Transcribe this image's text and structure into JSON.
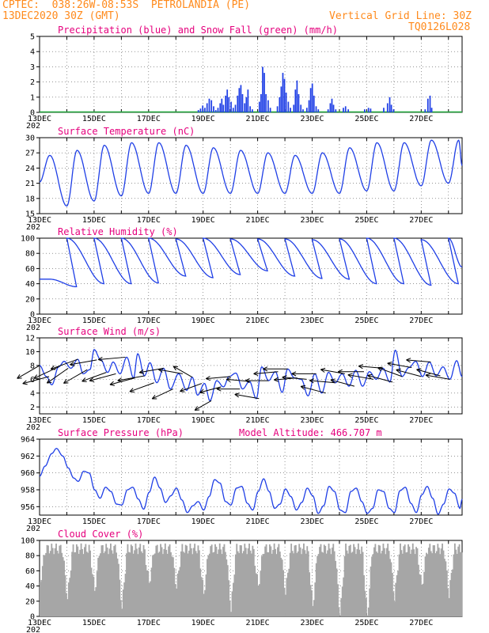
{
  "header": {
    "line1": "CPTEC:  038:26W-08:53S  PETROLANDIA (PE)",
    "line2": "13DEC2020 30Z (GMT)",
    "grid_note": "Vertical Grid Line: 30Z",
    "code": "TQ0126L028"
  },
  "colors": {
    "header": "#ff8a1c",
    "title": "#e5007d",
    "line": "#1f3fe6",
    "snow": "#1fa83a",
    "cloud": "#a6a6a6",
    "arrow": "#000000"
  },
  "axis": {
    "day_count": 15.5,
    "date_labels": [
      "13DEC",
      "15DEC",
      "17DEC",
      "19DEC",
      "21DEC",
      "23DEC",
      "25DEC",
      "27DEC"
    ],
    "date_days": [
      0,
      2,
      4,
      6,
      8,
      10,
      12,
      14
    ],
    "year_fragment": "202"
  },
  "chart_data": [
    {
      "id": "precip",
      "type": "bar",
      "title": "Precipitation (blue) and Snow Fall (green) (mm/h)",
      "ylim": [
        0,
        5
      ],
      "yticks": [
        0,
        1,
        2,
        3,
        4,
        5
      ],
      "bars": [
        [
          5.8,
          0.15
        ],
        [
          5.88,
          0.25
        ],
        [
          5.96,
          0.45
        ],
        [
          6.04,
          0.3
        ],
        [
          6.12,
          0.6
        ],
        [
          6.2,
          0.9
        ],
        [
          6.28,
          0.8
        ],
        [
          6.36,
          0.4
        ],
        [
          6.44,
          0.15
        ],
        [
          6.52,
          0.3
        ],
        [
          6.6,
          0.6
        ],
        [
          6.66,
          0.9
        ],
        [
          6.72,
          0.5
        ],
        [
          6.8,
          1.1
        ],
        [
          6.86,
          1.5
        ],
        [
          6.92,
          1.0
        ],
        [
          7.0,
          0.7
        ],
        [
          7.08,
          0.3
        ],
        [
          7.16,
          0.5
        ],
        [
          7.24,
          1.1
        ],
        [
          7.3,
          1.6
        ],
        [
          7.36,
          1.8
        ],
        [
          7.42,
          1.2
        ],
        [
          7.5,
          0.6
        ],
        [
          7.56,
          1.0
        ],
        [
          7.62,
          1.5
        ],
        [
          7.7,
          0.4
        ],
        [
          7.78,
          0.2
        ],
        [
          8.04,
          0.7
        ],
        [
          8.1,
          1.2
        ],
        [
          8.16,
          3.0
        ],
        [
          8.22,
          2.6
        ],
        [
          8.28,
          1.2
        ],
        [
          8.36,
          0.8
        ],
        [
          8.44,
          0.3
        ],
        [
          8.7,
          0.4
        ],
        [
          8.78,
          1.0
        ],
        [
          8.84,
          1.7
        ],
        [
          8.9,
          2.6
        ],
        [
          8.96,
          2.2
        ],
        [
          9.02,
          1.3
        ],
        [
          9.1,
          0.7
        ],
        [
          9.18,
          0.3
        ],
        [
          9.3,
          0.5
        ],
        [
          9.36,
          1.5
        ],
        [
          9.42,
          2.1
        ],
        [
          9.48,
          1.2
        ],
        [
          9.56,
          0.5
        ],
        [
          9.64,
          0.2
        ],
        [
          9.78,
          0.3
        ],
        [
          9.86,
          0.8
        ],
        [
          9.92,
          1.6
        ],
        [
          9.98,
          1.9
        ],
        [
          10.04,
          1.1
        ],
        [
          10.12,
          0.4
        ],
        [
          10.2,
          0.2
        ],
        [
          10.56,
          0.2
        ],
        [
          10.64,
          0.6
        ],
        [
          10.7,
          0.9
        ],
        [
          10.76,
          0.5
        ],
        [
          10.84,
          0.2
        ],
        [
          11.12,
          0.3
        ],
        [
          11.2,
          0.4
        ],
        [
          11.3,
          0.2
        ],
        [
          11.9,
          0.2
        ],
        [
          12.04,
          0.3
        ],
        [
          12.12,
          0.25
        ],
        [
          12.6,
          0.3
        ],
        [
          12.74,
          0.6
        ],
        [
          12.82,
          1.0
        ],
        [
          12.88,
          0.5
        ],
        [
          12.96,
          0.2
        ],
        [
          14.12,
          0.2
        ],
        [
          14.22,
          0.9
        ],
        [
          14.3,
          1.1
        ],
        [
          14.36,
          0.3
        ]
      ],
      "snow": [
        [
          0,
          6
        ],
        [
          6,
          15.5
        ]
      ]
    },
    {
      "id": "temp",
      "type": "line",
      "title": "Surface Temperature (nC)",
      "ylim": [
        15,
        30
      ],
      "yticks": [
        15,
        18,
        21,
        24,
        27,
        30
      ],
      "daily_min": [
        16,
        16.5,
        17.5,
        18.5,
        19,
        19,
        19,
        19,
        19,
        19,
        19,
        19,
        19.5,
        19.5,
        20.5,
        21
      ],
      "daily_max": [
        26.5,
        27.5,
        28.5,
        29,
        29,
        28.5,
        28,
        27.5,
        27,
        26.5,
        27,
        28,
        29,
        29,
        29.5,
        29.5
      ],
      "min_hour": 9,
      "max_hour": 18,
      "end_value": 24.5
    },
    {
      "id": "rh",
      "type": "line",
      "title": "Relative Humidity (%)",
      "ylim": [
        0,
        100
      ],
      "yticks": [
        0,
        20,
        40,
        60,
        80,
        100
      ],
      "daily_min": [
        46,
        36,
        40,
        40,
        41,
        50,
        48,
        52,
        57,
        50,
        47,
        46,
        40,
        40,
        38,
        40
      ],
      "daily_max": [
        100,
        100,
        100,
        100,
        100,
        99,
        100,
        99,
        99,
        99,
        98,
        99,
        100,
        100,
        98,
        100
      ],
      "end_value": 62
    },
    {
      "id": "wind",
      "type": "line",
      "title": "Surface Wind (m/s)",
      "ylim": [
        1,
        12
      ],
      "yticks": [
        2,
        4,
        6,
        8,
        10,
        12
      ],
      "values": [
        [
          0.0,
          8.0
        ],
        [
          0.25,
          6.4
        ],
        [
          0.45,
          5.2
        ],
        [
          0.7,
          7.8
        ],
        [
          0.9,
          8.6
        ],
        [
          1.15,
          7.6
        ],
        [
          1.4,
          8.9
        ],
        [
          1.6,
          6.8
        ],
        [
          1.85,
          7.4
        ],
        [
          2.0,
          10.3
        ],
        [
          2.25,
          8.8
        ],
        [
          2.5,
          7.0
        ],
        [
          2.7,
          8.5
        ],
        [
          2.95,
          6.8
        ],
        [
          3.2,
          9.2
        ],
        [
          3.45,
          6.2
        ],
        [
          3.6,
          9.7
        ],
        [
          3.85,
          6.5
        ],
        [
          4.05,
          8.4
        ],
        [
          4.3,
          5.5
        ],
        [
          4.55,
          7.6
        ],
        [
          4.8,
          4.6
        ],
        [
          5.1,
          6.8
        ],
        [
          5.4,
          4.4
        ],
        [
          5.6,
          6.3
        ],
        [
          5.8,
          3.7
        ],
        [
          6.05,
          5.4
        ],
        [
          6.25,
          2.9
        ],
        [
          6.5,
          5.8
        ],
        [
          6.75,
          4.9
        ],
        [
          6.95,
          6.4
        ],
        [
          7.2,
          6.9
        ],
        [
          7.45,
          4.6
        ],
        [
          7.7,
          5.7
        ],
        [
          7.95,
          3.2
        ],
        [
          8.15,
          7.8
        ],
        [
          8.4,
          5.8
        ],
        [
          8.65,
          7.1
        ],
        [
          8.9,
          4.1
        ],
        [
          9.1,
          7.5
        ],
        [
          9.35,
          6.2
        ],
        [
          9.6,
          6.0
        ],
        [
          9.85,
          3.6
        ],
        [
          10.1,
          6.8
        ],
        [
          10.35,
          4.0
        ],
        [
          10.6,
          7.0
        ],
        [
          10.85,
          5.5
        ],
        [
          11.1,
          6.8
        ],
        [
          11.35,
          5.0
        ],
        [
          11.6,
          7.3
        ],
        [
          11.85,
          5.0
        ],
        [
          12.1,
          7.1
        ],
        [
          12.35,
          6.0
        ],
        [
          12.6,
          7.6
        ],
        [
          12.85,
          5.6
        ],
        [
          13.05,
          10.2
        ],
        [
          13.3,
          6.4
        ],
        [
          13.55,
          7.7
        ],
        [
          13.8,
          8.6
        ],
        [
          14.05,
          6.4
        ],
        [
          14.3,
          8.5
        ],
        [
          14.55,
          6.5
        ],
        [
          14.8,
          7.8
        ],
        [
          15.05,
          6.0
        ],
        [
          15.3,
          8.7
        ],
        [
          15.5,
          6.4
        ]
      ],
      "arrows": [
        [
          0.0,
          8.0,
          240,
          0.95
        ],
        [
          0.35,
          6.4,
          255,
          1.0
        ],
        [
          0.7,
          7.8,
          245,
          1.0
        ],
        [
          1.05,
          7.6,
          235,
          0.95
        ],
        [
          1.4,
          8.9,
          250,
          1.05
        ],
        [
          1.75,
          7.4,
          240,
          1.0
        ],
        [
          2.1,
          8.8,
          260,
          1.0
        ],
        [
          2.45,
          7.0,
          250,
          0.95
        ],
        [
          2.8,
          6.8,
          255,
          1.0
        ],
        [
          3.15,
          9.2,
          265,
          1.0
        ],
        [
          3.5,
          6.2,
          255,
          0.95
        ],
        [
          3.85,
          6.5,
          260,
          1.0
        ],
        [
          4.2,
          5.5,
          250,
          0.95
        ],
        [
          4.55,
          7.6,
          260,
          0.9
        ],
        [
          4.9,
          4.6,
          245,
          0.85
        ],
        [
          5.25,
          6.8,
          280,
          0.9
        ],
        [
          5.6,
          6.3,
          300,
          0.8
        ],
        [
          5.95,
          5.4,
          250,
          0.85
        ],
        [
          6.3,
          2.9,
          240,
          0.7
        ],
        [
          6.65,
          4.9,
          255,
          0.8
        ],
        [
          7.0,
          6.4,
          265,
          0.9
        ],
        [
          7.35,
          4.6,
          270,
          0.85
        ],
        [
          7.7,
          5.7,
          275,
          0.85
        ],
        [
          8.05,
          3.2,
          280,
          0.9
        ],
        [
          8.4,
          5.8,
          270,
          0.85
        ],
        [
          8.75,
          7.1,
          265,
          0.9
        ],
        [
          9.1,
          7.5,
          270,
          0.9
        ],
        [
          9.45,
          6.2,
          265,
          0.85
        ],
        [
          9.8,
          6.0,
          275,
          0.9
        ],
        [
          10.15,
          6.8,
          270,
          0.9
        ],
        [
          10.5,
          4.0,
          285,
          0.95
        ],
        [
          10.85,
          5.5,
          275,
          0.95
        ],
        [
          11.2,
          6.8,
          280,
          0.9
        ],
        [
          11.55,
          5.0,
          285,
          0.9
        ],
        [
          11.9,
          7.1,
          270,
          0.95
        ],
        [
          12.25,
          6.0,
          280,
          0.95
        ],
        [
          12.6,
          7.6,
          275,
          0.9
        ],
        [
          12.95,
          5.6,
          285,
          0.95
        ],
        [
          13.3,
          6.4,
          290,
          0.95
        ],
        [
          13.65,
          7.7,
          280,
          0.9
        ],
        [
          14.0,
          6.4,
          285,
          0.95
        ],
        [
          14.35,
          8.5,
          275,
          0.9
        ],
        [
          14.7,
          6.5,
          285,
          0.9
        ],
        [
          15.05,
          6.0,
          280,
          0.9
        ]
      ]
    },
    {
      "id": "pres",
      "type": "line",
      "title": "Surface Pressure (hPa)",
      "subtitle": "Model Altitude: 466.707 m",
      "ylim": [
        955,
        964
      ],
      "yticks": [
        956,
        958,
        960,
        962,
        964
      ],
      "values": [
        [
          0.0,
          959.6
        ],
        [
          0.2,
          960.8
        ],
        [
          0.45,
          962.3
        ],
        [
          0.62,
          962.9
        ],
        [
          0.85,
          962.0
        ],
        [
          1.05,
          960.6
        ],
        [
          1.25,
          959.4
        ],
        [
          1.42,
          959.0
        ],
        [
          1.62,
          960.2
        ],
        [
          1.82,
          960.0
        ],
        [
          2.02,
          958.0
        ],
        [
          2.22,
          957.0
        ],
        [
          2.42,
          958.3
        ],
        [
          2.62,
          957.8
        ],
        [
          2.82,
          956.3
        ],
        [
          3.02,
          956.2
        ],
        [
          3.22,
          958.0
        ],
        [
          3.42,
          958.3
        ],
        [
          3.62,
          956.9
        ],
        [
          3.82,
          955.7
        ],
        [
          4.02,
          957.7
        ],
        [
          4.22,
          959.5
        ],
        [
          4.42,
          958.2
        ],
        [
          4.62,
          956.5
        ],
        [
          4.82,
          957.3
        ],
        [
          5.02,
          958.2
        ],
        [
          5.22,
          956.8
        ],
        [
          5.42,
          955.3
        ],
        [
          5.62,
          956.1
        ],
        [
          5.82,
          956.6
        ],
        [
          6.02,
          955.6
        ],
        [
          6.22,
          957.2
        ],
        [
          6.42,
          959.2
        ],
        [
          6.62,
          958.8
        ],
        [
          6.82,
          956.6
        ],
        [
          7.02,
          956.2
        ],
        [
          7.22,
          958.2
        ],
        [
          7.42,
          958.4
        ],
        [
          7.62,
          956.4
        ],
        [
          7.82,
          955.6
        ],
        [
          8.02,
          957.8
        ],
        [
          8.22,
          959.3
        ],
        [
          8.42,
          957.8
        ],
        [
          8.62,
          955.8
        ],
        [
          8.82,
          956.3
        ],
        [
          9.02,
          958.1
        ],
        [
          9.22,
          957.2
        ],
        [
          9.42,
          955.6
        ],
        [
          9.62,
          956.5
        ],
        [
          9.82,
          958.2
        ],
        [
          10.02,
          957.3
        ],
        [
          10.22,
          955.2
        ],
        [
          10.42,
          956.1
        ],
        [
          10.62,
          958.4
        ],
        [
          10.82,
          957.8
        ],
        [
          11.02,
          955.6
        ],
        [
          11.22,
          955.3
        ],
        [
          11.42,
          957.8
        ],
        [
          11.62,
          958.2
        ],
        [
          11.82,
          956.6
        ],
        [
          12.02,
          955.2
        ],
        [
          12.22,
          955.8
        ],
        [
          12.42,
          958.0
        ],
        [
          12.62,
          957.8
        ],
        [
          12.82,
          955.8
        ],
        [
          13.02,
          955.3
        ],
        [
          13.22,
          957.9
        ],
        [
          13.42,
          958.3
        ],
        [
          13.62,
          956.4
        ],
        [
          13.82,
          955.3
        ],
        [
          14.02,
          957.4
        ],
        [
          14.22,
          958.4
        ],
        [
          14.42,
          957.0
        ],
        [
          14.62,
          955.1
        ],
        [
          14.82,
          956.3
        ],
        [
          15.02,
          958.1
        ],
        [
          15.22,
          957.6
        ],
        [
          15.42,
          955.8
        ],
        [
          15.5,
          956.9
        ]
      ]
    },
    {
      "id": "cloud",
      "type": "area",
      "title": "Cloud Cover (%)",
      "ylim": [
        0,
        100
      ],
      "yticks": [
        0,
        20,
        40,
        60,
        80,
        100
      ],
      "daily_dip": [
        52,
        30,
        40,
        18,
        50,
        45,
        35,
        15,
        45,
        38,
        18,
        4,
        5,
        30,
        45,
        35
      ],
      "dip_center_hour": 9,
      "dip_width_hours": 4.5,
      "base_cover": 96
    }
  ]
}
